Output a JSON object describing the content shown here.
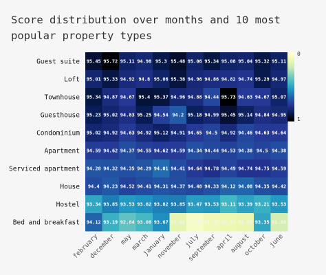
{
  "chart_data": {
    "type": "heatmap",
    "title": "Score distribution over months and 10 most popular property types",
    "xlabel": "",
    "ylabel": "",
    "x": [
      "february",
      "december",
      "may",
      "march",
      "january",
      "november",
      "july",
      "september",
      "april",
      "august",
      "october",
      "june"
    ],
    "y": [
      "Guest suite",
      "Loft",
      "Townhouse",
      "Guesthouse",
      "Condominium",
      "Apartment",
      "Serviced apartment",
      "House",
      "Hostel",
      "Bed and breakfast"
    ],
    "values": [
      [
        95.45,
        95.72,
        95.11,
        94.98,
        95.3,
        95.48,
        95.06,
        95.34,
        95.08,
        95.04,
        95.32,
        95.11
      ],
      [
        95.01,
        95.33,
        94.92,
        94.8,
        95.06,
        95.38,
        94.96,
        94.86,
        94.82,
        94.74,
        95.29,
        94.97
      ],
      [
        95.34,
        94.87,
        94.67,
        95.4,
        95.37,
        94.96,
        94.88,
        94.44,
        95.73,
        94.63,
        94.67,
        95.07
      ],
      [
        95.23,
        95.02,
        94.83,
        95.25,
        94.54,
        94.2,
        95.18,
        94.99,
        95.45,
        95.14,
        94.84,
        94.95
      ],
      [
        95.02,
        94.92,
        94.63,
        94.92,
        95.12,
        94.91,
        94.65,
        94.5,
        94.92,
        94.46,
        94.63,
        94.64
      ],
      [
        94.59,
        94.62,
        94.37,
        94.55,
        94.62,
        94.59,
        94.34,
        94.44,
        94.53,
        94.38,
        94.5,
        94.38
      ],
      [
        94.28,
        94.32,
        94.35,
        94.29,
        94.01,
        94.41,
        94.64,
        94.78,
        94.49,
        94.74,
        94.75,
        94.59
      ],
      [
        94.4,
        94.23,
        94.52,
        94.41,
        94.31,
        94.37,
        94.48,
        94.33,
        94.12,
        94.08,
        94.35,
        94.42
      ],
      [
        93.34,
        93.85,
        93.53,
        93.62,
        93.82,
        93.85,
        93.47,
        93.53,
        93.11,
        93.39,
        93.21,
        93.53
      ],
      [
        94.12,
        93.19,
        92.84,
        93.08,
        93.67,
        91.62,
        91.25,
        91.42,
        91.53,
        91.55,
        93.35,
        91.88
      ]
    ],
    "colorbar": {
      "label_top": "0",
      "label_bottom": "1"
    },
    "colorscale": [
      "#ffffd9",
      "#edf8b1",
      "#c7e9b4",
      "#7fcdbb",
      "#41b6c4",
      "#1d91c0",
      "#225ea8",
      "#253494",
      "#081d58",
      "#000000"
    ],
    "zlim": [
      91,
      95.75
    ]
  }
}
